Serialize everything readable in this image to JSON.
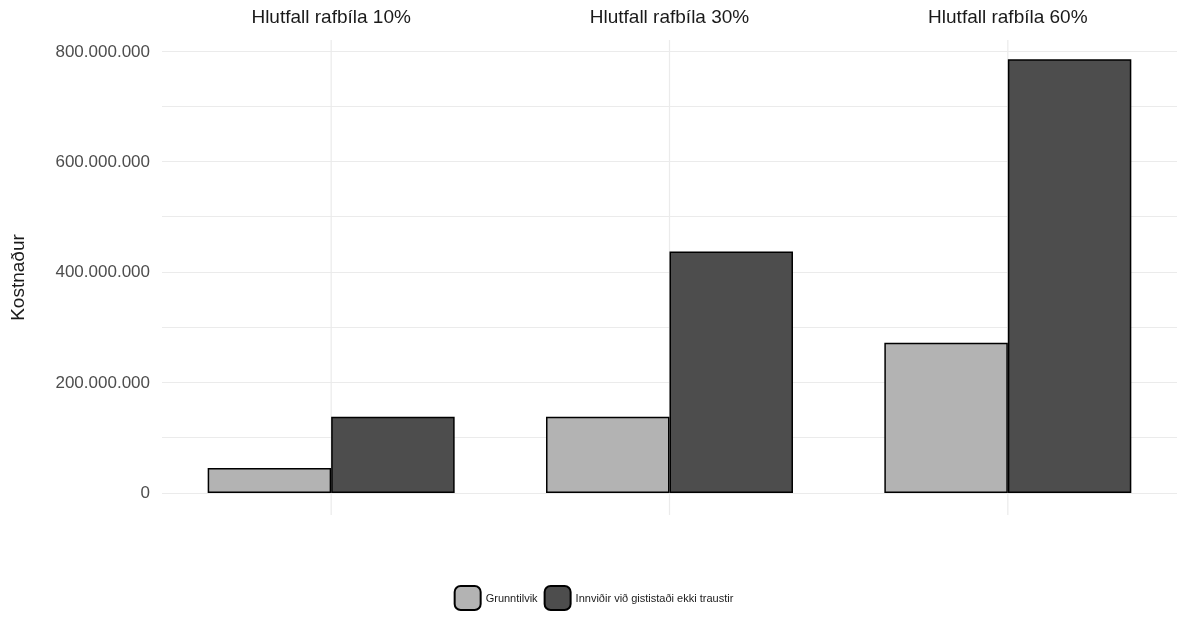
{
  "chart_data": {
    "type": "bar",
    "ylabel": "Kostnaður",
    "categories": [
      "Hlutfall rafbíla 10%",
      "Hlutfall rafbíla 30%",
      "Hlutfall rafbíla 60%"
    ],
    "series": [
      {
        "name": "Grunntilvik",
        "color": "#b3b3b3",
        "values": [
          45000000,
          138000000,
          272000000
        ]
      },
      {
        "name": "Innviðir við gististaði ekki traustir",
        "color": "#4d4d4d",
        "values": [
          138000000,
          437000000,
          785000000
        ]
      }
    ],
    "ylim": [
      -40000000,
      820000000
    ],
    "yticks": [
      {
        "value": 0,
        "label": "0"
      },
      {
        "value": 100000000,
        "label": null
      },
      {
        "value": 200000000,
        "label": "200.000.000"
      },
      {
        "value": 300000000,
        "label": null
      },
      {
        "value": 400000000,
        "label": "400.000.000"
      },
      {
        "value": 500000000,
        "label": null
      },
      {
        "value": 600000000,
        "label": "600.000.000"
      },
      {
        "value": 700000000,
        "label": null
      },
      {
        "value": 800000000,
        "label": "800.000.000"
      }
    ],
    "grid": true,
    "legend": "bottom"
  }
}
